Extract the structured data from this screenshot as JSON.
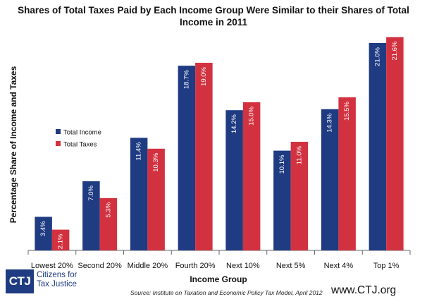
{
  "chart_data": {
    "type": "bar",
    "title": "Shares of Total Taxes Paid by Each Income Group Were Similar to their Shares of Total Income in 2011",
    "xlabel": "Income Group",
    "ylabel": "Percentage Share of Income and Taxes",
    "categories": [
      "Lowest 20%",
      "Second 20%",
      "Middle 20%",
      "Fourth 20%",
      "Next 10%",
      "Next 5%",
      "Next 4%",
      "Top 1%"
    ],
    "series": [
      {
        "name": "Total Income",
        "color": "#1f3b82",
        "values": [
          3.4,
          7.0,
          11.4,
          18.7,
          14.2,
          10.1,
          14.3,
          21.0
        ],
        "labels": [
          "3.4%",
          "7.0%",
          "11.4%",
          "18.7%",
          "14.2%",
          "10.1%",
          "14.3%",
          "21.0%"
        ]
      },
      {
        "name": "Total Taxes",
        "color": "#d2323f",
        "values": [
          2.1,
          5.3,
          10.3,
          19.0,
          15.0,
          11.0,
          15.5,
          21.6
        ],
        "labels": [
          "2.1%",
          "5.3%",
          "10.3%",
          "19.0%",
          "15.0%",
          "11.0%",
          "15.5%",
          "21.6%"
        ]
      }
    ],
    "ylim": [
      0,
      22
    ],
    "grid": false,
    "legend_position": "left"
  },
  "logo": {
    "mark": "CTJ",
    "name": "Citizens for Tax Justice"
  },
  "source": "Source: Institute on Taxation and Economic Policy Tax Model, April 2012",
  "website": "www.CTJ.org"
}
